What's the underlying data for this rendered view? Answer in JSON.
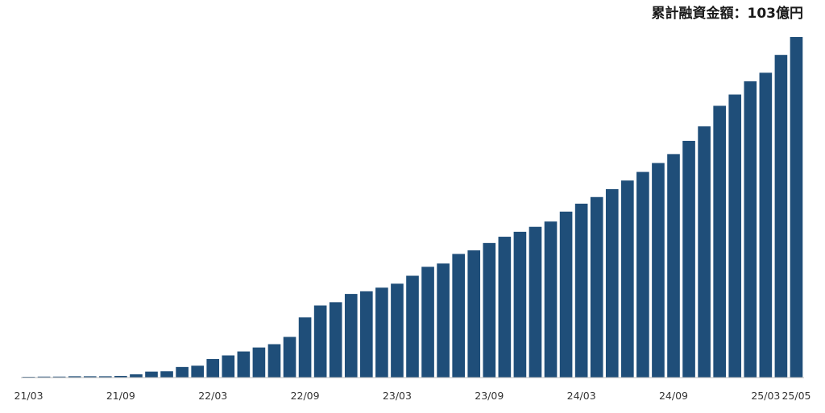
{
  "chart_data": {
    "type": "bar",
    "title": "累計融資金額：103億円",
    "xlabel": "",
    "ylabel": "",
    "grid": false,
    "legend": "none",
    "ylim": [
      0,
      103
    ],
    "colors": {
      "bar": "#1f4e79",
      "baseline": "#bfbfbf",
      "title": "#1a1a1a",
      "tick": "#333333"
    },
    "categories": [
      "21/03",
      "21/04",
      "21/05",
      "21/06",
      "21/07",
      "21/08",
      "21/09",
      "21/10",
      "21/11",
      "21/12",
      "22/01",
      "22/02",
      "22/03",
      "22/04",
      "22/05",
      "22/06",
      "22/07",
      "22/08",
      "22/09",
      "22/10",
      "22/11",
      "22/12",
      "23/01",
      "23/02",
      "23/03",
      "23/04",
      "23/05",
      "23/06",
      "23/07",
      "23/08",
      "23/09",
      "23/10",
      "23/11",
      "23/12",
      "24/01",
      "24/02",
      "24/03",
      "24/04",
      "24/05",
      "24/06",
      "24/07",
      "24/08",
      "24/09",
      "24/10",
      "24/11",
      "24/12",
      "25/01",
      "25/02",
      "25/03",
      "25/04",
      "25/05"
    ],
    "tick_labels": [
      {
        "index": 0,
        "label": "21/03"
      },
      {
        "index": 6,
        "label": "21/09"
      },
      {
        "index": 12,
        "label": "22/03"
      },
      {
        "index": 18,
        "label": "22/09"
      },
      {
        "index": 24,
        "label": "23/03"
      },
      {
        "index": 30,
        "label": "23/09"
      },
      {
        "index": 36,
        "label": "24/03"
      },
      {
        "index": 42,
        "label": "24/09"
      },
      {
        "index": 48,
        "label": "25/03"
      },
      {
        "index": 50,
        "label": "25/05"
      }
    ],
    "values": [
      0.1,
      0.3,
      0.3,
      0.4,
      0.4,
      0.4,
      0.5,
      1.0,
      1.8,
      1.9,
      3.2,
      3.6,
      5.6,
      6.7,
      7.9,
      9.1,
      10.1,
      12.3,
      18.2,
      21.8,
      22.8,
      25.3,
      26.1,
      27.2,
      28.4,
      30.8,
      33.5,
      34.5,
      37.4,
      38.5,
      40.7,
      42.6,
      44.1,
      45.6,
      47.2,
      50.2,
      52.6,
      54.6,
      57.0,
      59.6,
      62.2,
      64.9,
      67.6,
      71.6,
      76.0,
      82.2,
      85.6,
      89.6,
      92.2,
      97.6,
      103.0
    ]
  }
}
